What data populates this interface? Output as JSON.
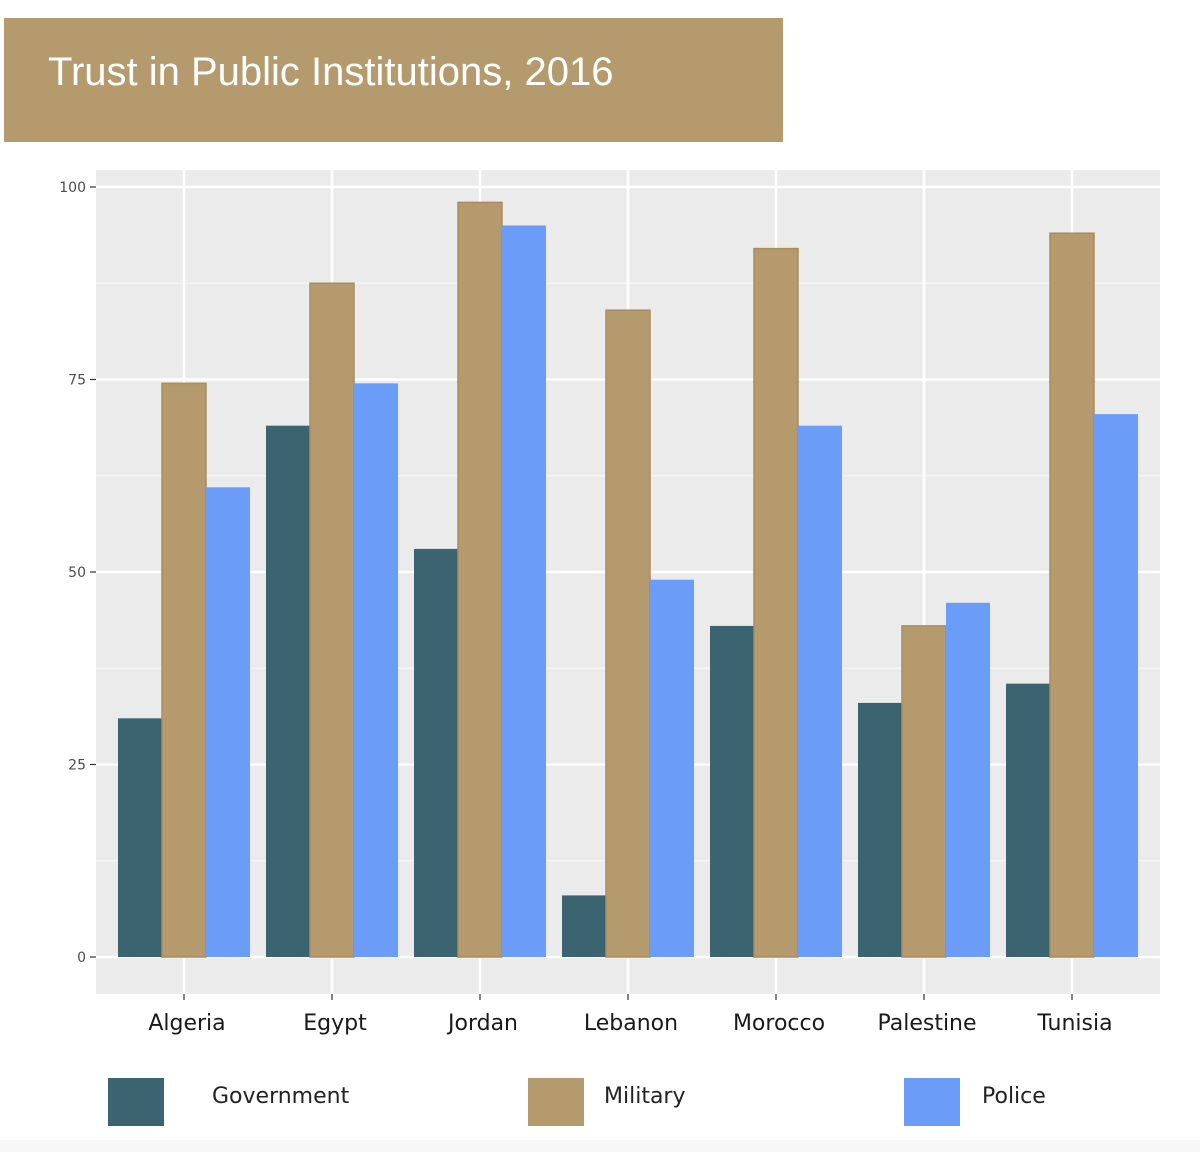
{
  "chart_data": {
    "type": "bar",
    "title": "Trust in Public Institutions, 2016",
    "xlabel": "",
    "ylabel": "",
    "ylim": [
      0,
      100
    ],
    "yticks": [
      "0",
      "25",
      "50",
      "75",
      "100"
    ],
    "grid": true,
    "legend_position": "bottom",
    "categories": [
      "Algeria",
      "Egypt",
      "Jordan",
      "Lebanon",
      "Morocco",
      "Palestine",
      "Tunisia"
    ],
    "series": [
      {
        "name": "Government",
        "color": "#3b6470",
        "values": [
          31,
          69,
          53,
          8,
          43,
          33,
          35.5
        ]
      },
      {
        "name": "Military",
        "color": "#b59a6d",
        "values": [
          74.5,
          87.5,
          98,
          84,
          92,
          43,
          94
        ]
      },
      {
        "name": "Police",
        "color": "#6b9cf7",
        "values": [
          61,
          74.5,
          95,
          49,
          69,
          46,
          70.5
        ]
      }
    ]
  }
}
